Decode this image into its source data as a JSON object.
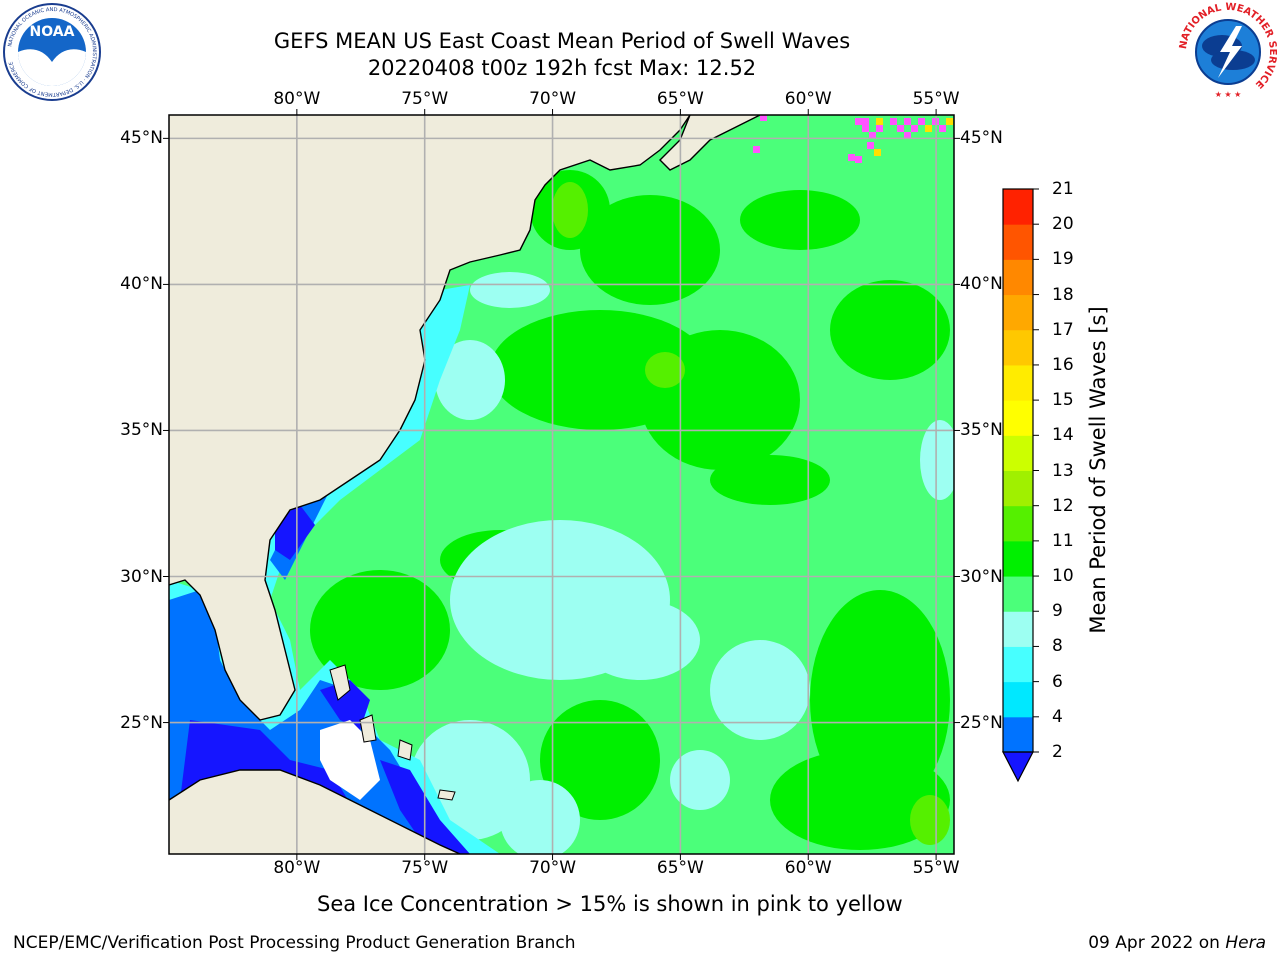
{
  "header": {
    "title_line1": "GEFS MEAN US East Coast Mean Period of Swell Waves",
    "title_line2": "20220408 t00z 192h fcst   Max: 12.52"
  },
  "logos": {
    "noaa": {
      "text": "NOAA",
      "ring_text": "NATIONAL OCEANIC AND ATMOSPHERIC ADMINISTRATION · U.S. DEPARTMENT OF COMMERCE",
      "icon": "noaa-logo"
    },
    "nws": {
      "ring_text": "NATIONAL WEATHER SERVICE",
      "icon": "nws-logo"
    }
  },
  "map": {
    "lon_ticks": [
      "80°W",
      "75°W",
      "70°W",
      "65°W",
      "60°W",
      "55°W"
    ],
    "lat_ticks": [
      "45°N",
      "40°N",
      "35°N",
      "30°N",
      "25°N"
    ],
    "lon_range": [
      -85,
      -54.3
    ],
    "lat_range": [
      20.5,
      45.8
    ],
    "colors": {
      "land": "#efecdc",
      "coast": "#000000",
      "grid": "#b0b0b0",
      "ocean_main": "#4bff7a",
      "band_10_11": "#00f000",
      "band_11_12": "#55f000",
      "band_8_9": "#9dfff2",
      "band_6_8": "#47ffff",
      "band_4_6": "#00e8ff",
      "band_2_4": "#0073ff",
      "below_2": "#1515ff",
      "ice_pink": "#ff55ff",
      "ice_yellow": "#ffe000"
    }
  },
  "colorbar": {
    "title": "Mean Period of Swell Waves [s]",
    "labels": [
      "21",
      "20",
      "19",
      "18",
      "17",
      "16",
      "15",
      "14",
      "13",
      "12",
      "11",
      "10",
      "9",
      "8",
      "6",
      "4",
      "2"
    ],
    "levels": [
      2,
      4,
      6,
      8,
      9,
      10,
      11,
      12,
      13,
      14,
      15,
      16,
      17,
      18,
      19,
      20,
      21
    ],
    "colors": [
      "#0073ff",
      "#00e8ff",
      "#47ffff",
      "#9dfff2",
      "#4bff7a",
      "#00f000",
      "#55f000",
      "#a0f000",
      "#ccff00",
      "#ffff00",
      "#ffec00",
      "#ffc800",
      "#ffa800",
      "#ff8800",
      "#ff5500",
      "#ff2200"
    ],
    "under_color": "#1515ff"
  },
  "notes": {
    "ice": "Sea Ice Concentration > 15% is shown in pink to yellow"
  },
  "footer": {
    "left": "NCEP/EMC/Verification Post Processing Product Generation Branch",
    "date": "09 Apr 2022 on ",
    "machine": "Hera"
  }
}
